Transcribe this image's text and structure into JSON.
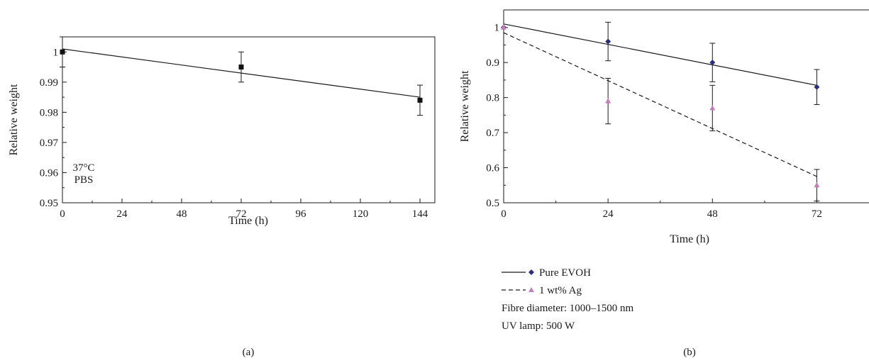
{
  "chart_data": [
    {
      "panel_label": "(a)",
      "type": "scatter",
      "xlabel": "Time (h)",
      "ylabel": "Relative weight",
      "xlim": [
        0,
        150
      ],
      "ylim": [
        0.95,
        1.005
      ],
      "x_ticks": [
        0,
        24,
        48,
        72,
        96,
        120,
        144
      ],
      "x_tick_labels": [
        "0",
        "24",
        "48",
        "72",
        "96",
        "120",
        "144"
      ],
      "y_ticks": [
        0.95,
        0.96,
        0.97,
        0.98,
        0.99,
        1.0
      ],
      "y_tick_labels": [
        "0.95",
        "0.96",
        "0.97",
        "0.98",
        "0.99",
        "1"
      ],
      "grid": false,
      "annotations": [
        "37°C",
        "PBS"
      ],
      "series": [
        {
          "marker": "square",
          "color": "#111111",
          "points": [
            {
              "x": 0,
              "y": 1.0,
              "err": 0.005
            },
            {
              "x": 72,
              "y": 0.995,
              "err": 0.005
            },
            {
              "x": 144,
              "y": 0.984,
              "err": 0.005
            }
          ],
          "fit": {
            "style": "solid",
            "x": [
              0,
              144
            ],
            "y": [
              1.001,
              0.985
            ]
          }
        }
      ]
    },
    {
      "panel_label": "(b)",
      "type": "scatter",
      "xlabel": "Time (h)",
      "ylabel": "Relative weight",
      "xlim": [
        0,
        84
      ],
      "ylim": [
        0.5,
        1.05
      ],
      "x_ticks": [
        0,
        24,
        48,
        72
      ],
      "x_tick_labels": [
        "0",
        "24",
        "48",
        "72"
      ],
      "y_ticks": [
        0.5,
        0.6,
        0.7,
        0.8,
        0.9,
        1.0
      ],
      "y_tick_labels": [
        "0.5",
        "0.6",
        "0.7",
        "0.8",
        "0.9",
        "1"
      ],
      "grid": false,
      "legend_position": "below",
      "series": [
        {
          "name": "Pure EVOH",
          "marker": "diamond",
          "color": "#2b2f7a",
          "line_style": "solid",
          "points": [
            {
              "x": 0,
              "y": 1.0,
              "err": 0.0
            },
            {
              "x": 24,
              "y": 0.96,
              "err": 0.055
            },
            {
              "x": 48,
              "y": 0.9,
              "err": 0.055
            },
            {
              "x": 72,
              "y": 0.83,
              "err": 0.05
            }
          ],
          "fit": {
            "x": [
              0,
              72
            ],
            "y": [
              1.01,
              0.835
            ]
          }
        },
        {
          "name": "1 wt% Ag",
          "marker": "triangle",
          "color": "#c77dbb",
          "line_style": "dashed",
          "points": [
            {
              "x": 0,
              "y": 1.0,
              "err": 0.0
            },
            {
              "x": 24,
              "y": 0.79,
              "err": 0.065
            },
            {
              "x": 48,
              "y": 0.77,
              "err": 0.065
            },
            {
              "x": 72,
              "y": 0.55,
              "err": 0.045
            }
          ],
          "fit": {
            "x": [
              0,
              72
            ],
            "y": [
              0.985,
              0.575
            ]
          }
        }
      ],
      "notes": [
        "Fibre diameter: 1000–1500 nm",
        "UV lamp: 500 W"
      ]
    }
  ]
}
